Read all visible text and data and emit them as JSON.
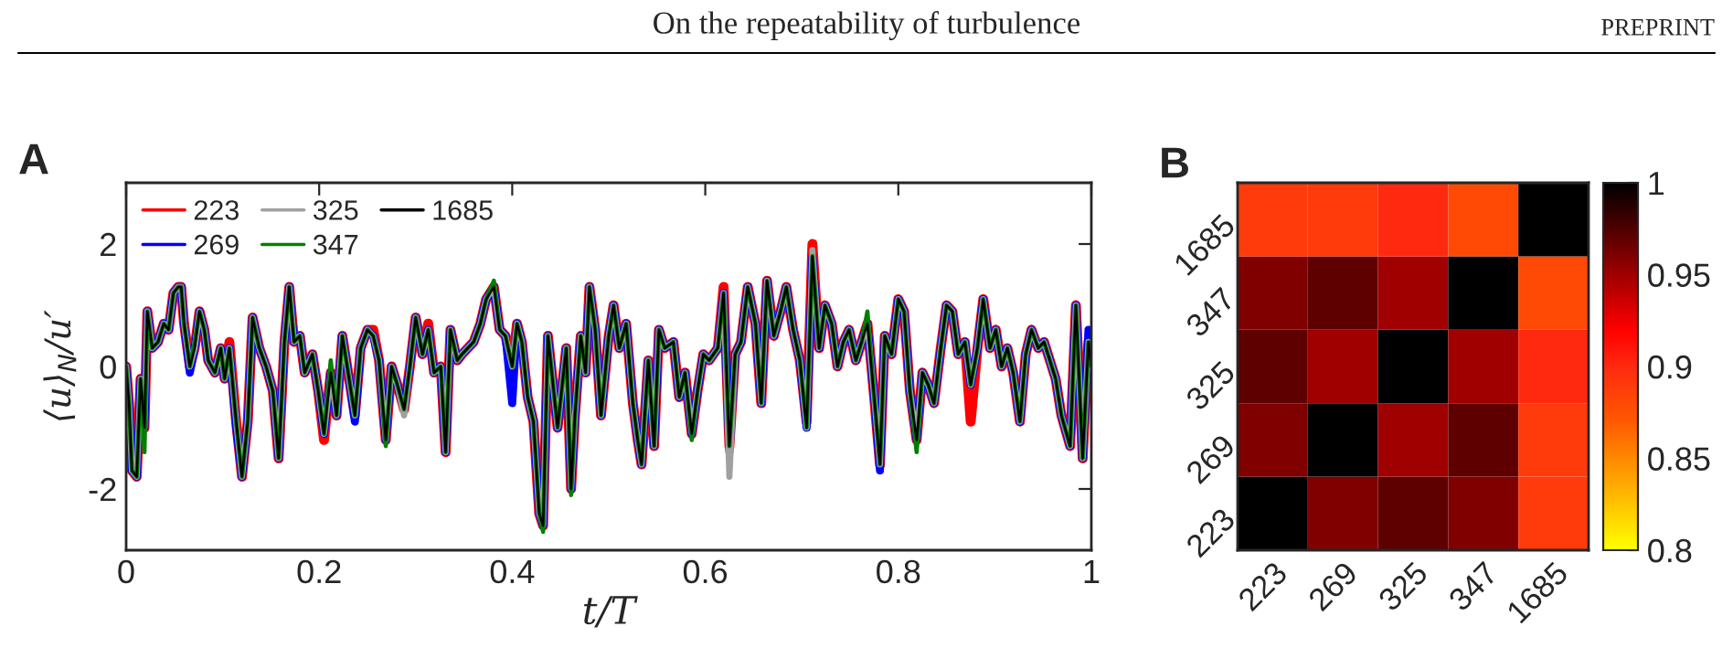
{
  "chart_data": [
    {
      "type": "line",
      "xlabel": "t/T",
      "ylabel": "⟨u⟩$_{N}$/u′",
      "annotations": [
        "A",
        "On the repeatability of turbulence",
        "PREPRINT"
      ],
      "xlim": [
        0,
        1
      ],
      "xticks": [
        0,
        0.2,
        0.4,
        0.6,
        0.8,
        1
      ],
      "ylim": [
        -3,
        3
      ],
      "yticks": [
        {
          "value": -2,
          "label": "-2"
        },
        0,
        2
      ],
      "grid": false,
      "legend": "top left",
      "marker": "none",
      "line_style": "solid",
      "x": [
        0,
        0.003,
        0.006,
        0.011,
        0.015,
        0.019,
        0.022,
        0.027,
        0.033,
        0.039,
        0.044,
        0.049,
        0.054,
        0.057,
        0.06,
        0.066,
        0.071,
        0.076,
        0.081,
        0.085,
        0.092,
        0.098,
        0.102,
        0.107,
        0.114,
        0.12,
        0.126,
        0.131,
        0.138,
        0.145,
        0.152,
        0.158,
        0.164,
        0.169,
        0.174,
        0.18,
        0.185,
        0.193,
        0.199,
        0.205,
        0.212,
        0.218,
        0.224,
        0.231,
        0.237,
        0.243,
        0.25,
        0.256,
        0.262,
        0.269,
        0.275,
        0.281,
        0.288,
        0.294,
        0.3,
        0.307,
        0.313,
        0.319,
        0.326,
        0.331,
        0.336,
        0.343,
        0.348,
        0.354,
        0.36,
        0.367,
        0.373,
        0.381,
        0.387,
        0.393,
        0.4,
        0.405,
        0.41,
        0.416,
        0.422,
        0.428,
        0.432,
        0.437,
        0.447,
        0.456,
        0.461,
        0.465,
        0.471,
        0.476,
        0.48,
        0.486,
        0.492,
        0.5,
        0.505,
        0.511,
        0.518,
        0.525,
        0.53,
        0.534,
        0.541,
        0.547,
        0.552,
        0.558,
        0.567,
        0.573,
        0.579,
        0.586,
        0.592,
        0.598,
        0.604,
        0.613,
        0.619,
        0.625,
        0.631,
        0.637,
        0.644,
        0.652,
        0.658,
        0.664,
        0.671,
        0.678,
        0.684,
        0.691,
        0.698,
        0.705,
        0.711,
        0.718,
        0.724,
        0.731,
        0.737,
        0.743,
        0.749,
        0.756,
        0.762,
        0.768,
        0.775,
        0.781,
        0.786,
        0.793,
        0.8,
        0.806,
        0.812,
        0.819,
        0.825,
        0.831,
        0.837,
        0.844,
        0.85,
        0.856,
        0.862,
        0.869,
        0.875,
        0.882,
        0.888,
        0.895,
        0.901,
        0.907,
        0.913,
        0.919,
        0.926,
        0.932,
        0.938,
        0.945,
        0.951,
        0.957,
        0.963,
        0.969,
        0.978,
        0.984,
        0.991,
        0.997,
        1.0
      ],
      "series": [
        {
          "name": "223",
          "color": "#ff0000",
          "values": [
            0,
            -0.6,
            -1.7,
            -1.8,
            -0.2,
            -1.0,
            0.9,
            0.3,
            0.4,
            0.7,
            0.6,
            1.2,
            1.3,
            1.3,
            0.7,
            0.0,
            0.3,
            0.9,
            0.6,
            0.1,
            -0.1,
            0.3,
            -0.2,
            0.4,
            -0.9,
            -1.8,
            -0.9,
            0.8,
            0.3,
            0.0,
            -0.4,
            -1.5,
            0.4,
            1.3,
            0.4,
            0.5,
            -0.1,
            0.2,
            -0.4,
            -1.2,
            -0.1,
            -0.8,
            0.5,
            -0.2,
            -0.8,
            0.3,
            0.6,
            0.6,
            0.1,
            -1.2,
            0.0,
            -0.3,
            -0.7,
            0.0,
            0.8,
            0.2,
            0.7,
            -0.1,
            0.0,
            -1.4,
            0.6,
            0.1,
            0.2,
            0.3,
            0.4,
            0.7,
            1.1,
            1.3,
            0.6,
            0.5,
            0.0,
            0.7,
            0.4,
            -0.5,
            -0.9,
            -2.4,
            -2.6,
            0.5,
            -1.0,
            0.3,
            -2.0,
            -0.8,
            0.5,
            -0.1,
            1.3,
            0.6,
            -0.8,
            0.5,
            1.0,
            0.3,
            0.7,
            -0.6,
            -1.2,
            -1.6,
            0.1,
            -1.3,
            0.6,
            0.3,
            0.4,
            -0.5,
            -0.1,
            -1.1,
            -0.4,
            0.2,
            0.1,
            0.3,
            1.3,
            -1.3,
            0.2,
            0.4,
            1.3,
            0.7,
            -0.6,
            1.4,
            0.5,
            0.9,
            1.3,
            0.6,
            0.1,
            -0.9,
            2.0,
            0.3,
            1.0,
            0.7,
            0.0,
            0.4,
            0.6,
            0.1,
            0.4,
            0.7,
            -0.5,
            -1.6,
            0.5,
            0.2,
            1.1,
            0.9,
            -0.4,
            -1.2,
            -0.1,
            -0.3,
            -0.6,
            0.3,
            1.0,
            0.9,
            0.2,
            0.4,
            -0.9,
            0.3,
            1.1,
            0.3,
            0.6,
            0.0,
            0.3,
            -0.1,
            -0.9,
            0.2,
            0.6,
            0.3,
            0.4,
            0.1,
            -0.2,
            -0.8,
            -1.3,
            1.0,
            -1.5,
            0.4,
            0.0
          ]
        },
        {
          "name": "269",
          "color": "#0000ff",
          "values": [
            0,
            -0.6,
            -1.7,
            -1.8,
            -0.2,
            -1.0,
            0.9,
            0.3,
            0.4,
            0.7,
            0.6,
            1.2,
            1.3,
            1.3,
            0.7,
            -0.1,
            0.3,
            0.9,
            0.6,
            0.1,
            -0.1,
            0.3,
            -0.2,
            0.3,
            -1.0,
            -1.8,
            -0.9,
            0.8,
            0.3,
            0.0,
            -0.4,
            -1.5,
            0.4,
            1.3,
            0.4,
            0.5,
            -0.1,
            0.2,
            -0.4,
            -1.1,
            -0.1,
            -0.8,
            0.5,
            -0.2,
            -0.9,
            0.3,
            0.6,
            0.5,
            0.1,
            -1.2,
            0.0,
            -0.3,
            -0.7,
            0.0,
            0.8,
            0.2,
            0.6,
            -0.1,
            0.0,
            -1.4,
            0.6,
            0.1,
            0.2,
            0.3,
            0.4,
            0.7,
            1.1,
            1.3,
            0.6,
            0.5,
            -0.6,
            0.7,
            0.4,
            -0.5,
            -0.9,
            -2.4,
            -2.6,
            0.5,
            -1.0,
            0.3,
            -2.0,
            -0.8,
            0.5,
            -0.1,
            1.3,
            0.6,
            -0.8,
            0.5,
            1.0,
            0.3,
            0.7,
            -0.6,
            -1.2,
            -1.6,
            0.1,
            -1.3,
            0.6,
            0.3,
            0.4,
            -0.5,
            -0.1,
            -1.1,
            -0.4,
            0.2,
            0.1,
            0.3,
            1.2,
            -1.4,
            0.2,
            0.4,
            1.3,
            0.7,
            -0.6,
            1.4,
            0.5,
            0.9,
            1.3,
            0.6,
            0.1,
            -1.0,
            1.8,
            0.3,
            1.0,
            0.7,
            0.0,
            0.4,
            0.6,
            0.1,
            0.4,
            0.7,
            -0.5,
            -1.7,
            0.5,
            0.2,
            1.1,
            0.9,
            -0.4,
            -1.2,
            -0.1,
            -0.3,
            -0.6,
            0.3,
            1.0,
            0.9,
            0.2,
            0.4,
            -0.3,
            0.3,
            1.1,
            0.3,
            0.6,
            0.0,
            0.3,
            -0.1,
            -0.9,
            0.2,
            0.6,
            0.3,
            0.4,
            0.1,
            -0.2,
            -0.8,
            -1.3,
            1.0,
            -1.5,
            0.6,
            0.0
          ]
        },
        {
          "name": "325",
          "color": "#a0a0a0",
          "values": [
            0,
            -0.6,
            -1.7,
            -1.8,
            -0.2,
            -1.0,
            0.9,
            0.3,
            0.4,
            0.7,
            0.6,
            1.2,
            1.3,
            1.3,
            0.7,
            0.0,
            0.3,
            0.9,
            0.6,
            0.1,
            -0.1,
            0.3,
            -0.2,
            0.3,
            -0.9,
            -1.8,
            -0.9,
            0.8,
            0.3,
            0.0,
            -0.4,
            -1.5,
            0.4,
            1.3,
            0.4,
            0.5,
            -0.1,
            0.2,
            -0.4,
            -1.1,
            -0.1,
            -0.8,
            0.5,
            -0.2,
            -0.8,
            0.3,
            0.6,
            0.5,
            0.1,
            -1.2,
            0.0,
            -0.3,
            -0.8,
            0.0,
            0.8,
            0.2,
            0.6,
            -0.1,
            0.0,
            -1.4,
            0.6,
            0.1,
            0.2,
            0.3,
            0.4,
            0.7,
            1.1,
            1.3,
            0.6,
            0.5,
            0.0,
            0.7,
            0.4,
            -0.5,
            -0.9,
            -2.4,
            -2.6,
            0.5,
            -1.0,
            0.3,
            -2.0,
            -0.8,
            0.5,
            -0.1,
            1.3,
            0.6,
            -0.8,
            0.5,
            1.0,
            0.3,
            0.7,
            -0.6,
            -1.2,
            -1.6,
            0.1,
            -1.3,
            0.6,
            0.3,
            0.4,
            -0.5,
            -0.1,
            -1.1,
            -0.4,
            0.2,
            0.1,
            0.3,
            1.2,
            -1.8,
            0.2,
            0.4,
            1.3,
            0.7,
            -0.6,
            1.4,
            0.5,
            0.9,
            1.3,
            0.6,
            0.1,
            -1.0,
            1.9,
            0.3,
            1.0,
            0.7,
            0.0,
            0.4,
            0.6,
            0.1,
            0.4,
            0.7,
            -0.5,
            -1.6,
            0.5,
            0.2,
            1.1,
            0.9,
            -0.4,
            -1.2,
            -0.1,
            -0.3,
            -0.6,
            0.3,
            1.0,
            0.9,
            0.2,
            0.4,
            -0.3,
            0.3,
            1.1,
            0.3,
            0.6,
            0.0,
            0.3,
            -0.1,
            -0.9,
            0.2,
            0.6,
            0.3,
            0.4,
            0.1,
            -0.2,
            -0.8,
            -1.3,
            1.0,
            -1.5,
            0.4,
            0.0
          ]
        },
        {
          "name": "347",
          "color": "#008000",
          "values": [
            0,
            -0.6,
            -1.7,
            -1.8,
            -0.2,
            -1.4,
            0.9,
            0.3,
            0.4,
            0.7,
            0.6,
            1.2,
            1.3,
            1.3,
            0.7,
            0.0,
            0.4,
            0.9,
            0.6,
            0.1,
            -0.1,
            0.3,
            -0.2,
            0.3,
            -0.9,
            -1.8,
            -0.9,
            0.8,
            0.3,
            0.0,
            -0.4,
            -1.5,
            0.4,
            1.3,
            0.4,
            0.5,
            -0.1,
            0.2,
            -0.4,
            -1.1,
            0.1,
            -0.8,
            0.5,
            -0.2,
            -0.8,
            0.3,
            0.6,
            0.5,
            0.1,
            -1.3,
            0.0,
            -0.3,
            -0.7,
            0.0,
            0.8,
            0.2,
            0.6,
            -0.1,
            0.0,
            -1.4,
            0.6,
            0.1,
            0.2,
            0.3,
            0.4,
            0.7,
            1.1,
            1.4,
            0.6,
            0.5,
            0.0,
            0.7,
            0.4,
            -0.5,
            -0.9,
            -2.4,
            -2.7,
            0.5,
            -1.0,
            0.3,
            -2.1,
            -0.8,
            0.5,
            -0.1,
            1.3,
            0.6,
            -0.8,
            0.5,
            1.0,
            0.3,
            0.7,
            -0.6,
            -1.2,
            -1.6,
            0.1,
            -1.3,
            0.6,
            0.3,
            0.4,
            -0.5,
            -0.1,
            -1.2,
            -0.4,
            0.2,
            0.1,
            0.3,
            1.2,
            -1.3,
            0.2,
            0.4,
            1.3,
            0.7,
            -0.6,
            1.4,
            0.5,
            0.9,
            1.3,
            0.6,
            0.1,
            -1.0,
            1.8,
            0.3,
            1.0,
            0.7,
            0.0,
            0.4,
            0.6,
            0.1,
            0.4,
            0.9,
            -0.5,
            -1.6,
            0.5,
            0.2,
            1.1,
            0.9,
            -0.4,
            -1.4,
            -0.1,
            -0.3,
            -0.6,
            0.3,
            1.0,
            0.9,
            0.2,
            0.4,
            -0.3,
            0.3,
            1.1,
            0.3,
            0.6,
            0.0,
            0.3,
            -0.1,
            -0.9,
            0.2,
            0.6,
            0.3,
            0.4,
            0.1,
            -0.2,
            -0.8,
            -1.3,
            1.0,
            -1.5,
            0.4,
            0.0
          ]
        },
        {
          "name": "1685",
          "color": "#000000",
          "values": [
            0,
            -0.6,
            -1.7,
            -1.8,
            -0.2,
            -1.0,
            0.9,
            0.3,
            0.4,
            0.7,
            0.6,
            1.2,
            1.3,
            1.3,
            0.7,
            0.0,
            0.3,
            0.9,
            0.6,
            0.1,
            -0.1,
            0.3,
            -0.2,
            0.3,
            -0.9,
            -1.8,
            -0.9,
            0.8,
            0.3,
            0.0,
            -0.4,
            -1.5,
            0.4,
            1.3,
            0.4,
            0.5,
            -0.1,
            0.2,
            -0.4,
            -1.1,
            -0.1,
            -0.8,
            0.5,
            -0.2,
            -0.8,
            0.3,
            0.6,
            0.5,
            0.1,
            -1.2,
            0.0,
            -0.3,
            -0.7,
            0.0,
            0.8,
            0.2,
            0.6,
            -0.1,
            0.0,
            -1.4,
            0.6,
            0.1,
            0.2,
            0.3,
            0.4,
            0.7,
            1.1,
            1.3,
            0.6,
            0.5,
            0.0,
            0.7,
            0.4,
            -0.5,
            -0.9,
            -2.4,
            -2.6,
            0.5,
            -1.0,
            0.3,
            -2.0,
            -0.8,
            0.5,
            -0.1,
            1.3,
            0.6,
            -0.8,
            0.5,
            1.0,
            0.3,
            0.7,
            -0.6,
            -1.2,
            -1.6,
            0.1,
            -1.3,
            0.6,
            0.3,
            0.4,
            -0.5,
            -0.1,
            -1.1,
            -0.4,
            0.2,
            0.1,
            0.3,
            1.2,
            -1.3,
            0.2,
            0.4,
            1.3,
            0.7,
            -0.6,
            1.4,
            0.5,
            0.9,
            1.3,
            0.6,
            0.1,
            -1.0,
            1.8,
            0.3,
            1.0,
            0.7,
            0.0,
            0.4,
            0.6,
            0.1,
            0.4,
            0.7,
            -0.5,
            -1.6,
            0.5,
            0.2,
            1.1,
            0.9,
            -0.4,
            -1.2,
            -0.1,
            -0.3,
            -0.6,
            0.3,
            1.0,
            0.9,
            0.2,
            0.4,
            -0.3,
            0.3,
            1.1,
            0.3,
            0.6,
            0.0,
            0.3,
            -0.1,
            -0.9,
            0.2,
            0.6,
            0.3,
            0.4,
            0.1,
            -0.2,
            -0.8,
            -1.3,
            1.0,
            -1.5,
            0.4,
            0.0
          ]
        }
      ]
    },
    {
      "type": "heatmap",
      "annotations": [
        "B"
      ],
      "categories": [
        "223",
        "269",
        "325",
        "347",
        "1685"
      ],
      "y_categories": [
        "1685",
        "347",
        "325",
        "269",
        "223"
      ],
      "cells": [
        [
          0.89,
          0.89,
          0.9,
          0.88,
          1
        ],
        [
          0.96,
          0.97,
          0.95,
          1,
          0.88
        ],
        [
          0.97,
          0.95,
          1,
          0.95,
          0.9
        ],
        [
          0.96,
          1,
          0.95,
          0.97,
          0.89
        ],
        [
          1,
          0.96,
          0.97,
          0.96,
          0.89
        ]
      ],
      "clim": [
        0.8,
        1
      ],
      "cticks": [
        0.8,
        0.85,
        0.9,
        0.95,
        1
      ]
    }
  ]
}
